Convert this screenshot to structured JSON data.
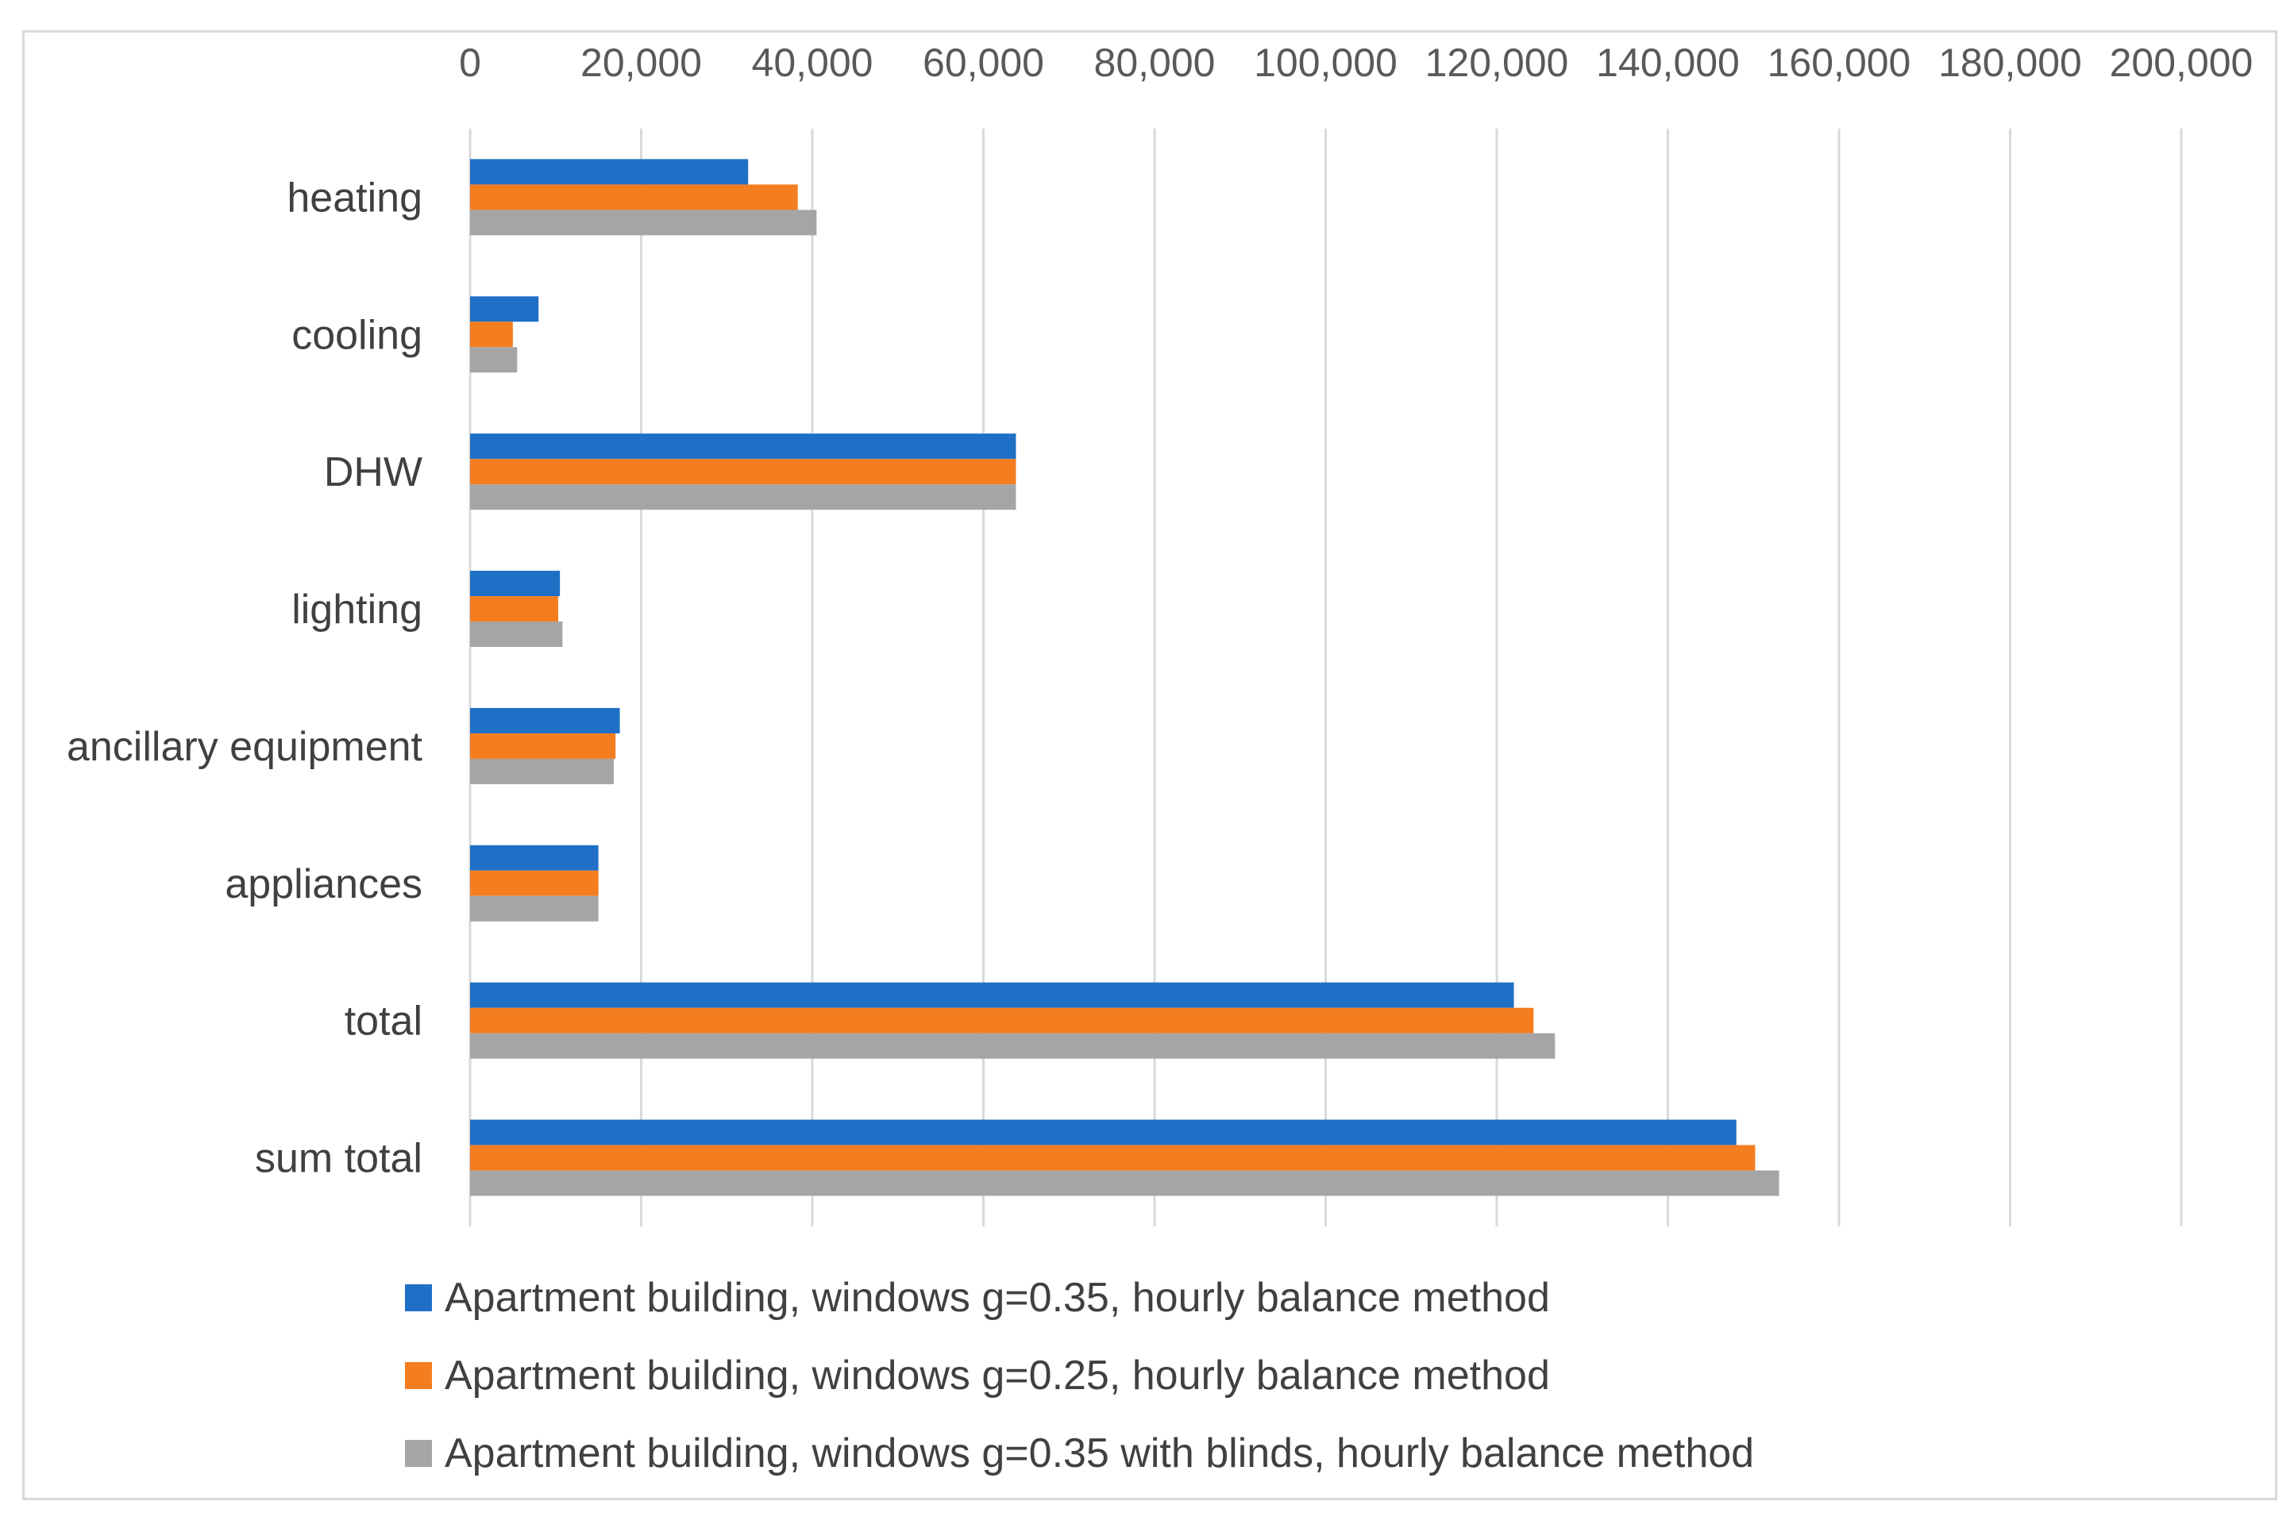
{
  "chart_data": {
    "type": "bar",
    "orientation": "horizontal",
    "title": "",
    "xlabel": "",
    "ylabel": "",
    "xlim": [
      0,
      200000
    ],
    "x_ticks": [
      0,
      20000,
      40000,
      60000,
      80000,
      100000,
      120000,
      140000,
      160000,
      180000,
      200000
    ],
    "x_tick_labels": [
      "0",
      "20,000",
      "40,000",
      "60,000",
      "80,000",
      "100,000",
      "120,000",
      "140,000",
      "160,000",
      "180,000",
      "200,000"
    ],
    "x_axis_position": "top",
    "grid": true,
    "legend_position": "bottom",
    "categories": [
      "heating",
      "cooling",
      "DHW",
      "lighting",
      "ancillary equipment",
      "appliances",
      "total",
      "sum total"
    ],
    "series": [
      {
        "name": "Apartment building, windows g=0.35,  hourly balance method",
        "color": "#1f6fc7",
        "values": [
          32500,
          8000,
          63800,
          10500,
          17500,
          15000,
          122000,
          148000
        ]
      },
      {
        "name": "Apartment building, windows g=0.25,  hourly balance method",
        "color": "#f47d20",
        "values": [
          38300,
          5000,
          63800,
          10300,
          17000,
          15000,
          124300,
          150200
        ]
      },
      {
        "name": "Apartment building, windows g=0.35 with blinds,  hourly balance method",
        "color": "#a5a5a5",
        "values": [
          40500,
          5500,
          63800,
          10800,
          16800,
          15000,
          126800,
          153000
        ]
      }
    ]
  }
}
